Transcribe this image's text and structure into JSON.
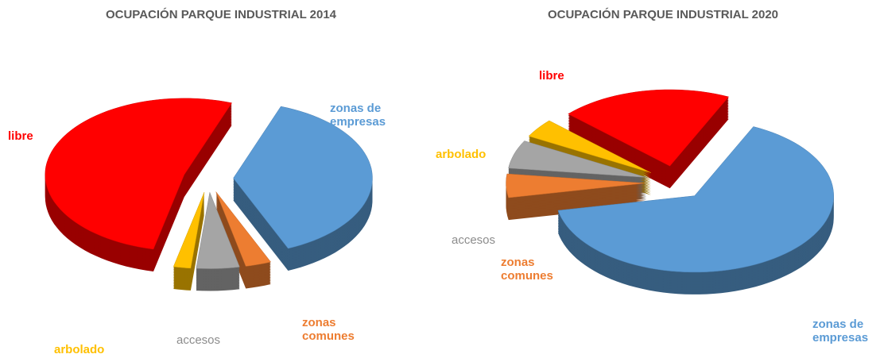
{
  "chart_data": [
    {
      "type": "pie3d",
      "title": "OCUPACIÓN PARQUE INDUSTRIAL 2014",
      "categories": [
        "zonas de empresas",
        "zonas comunes",
        "accesos",
        "arbolado",
        "libre"
      ],
      "values": [
        38,
        3,
        5,
        2,
        52
      ],
      "colors": [
        "#5b9bd5",
        "#ed7d31",
        "#a5a5a5",
        "#ffc000",
        "#ff0000"
      ]
    },
    {
      "type": "pie3d",
      "title": "OCUPACIÓN PARQUE INDUSTRIAL 2020",
      "categories": [
        "zonas de empresas",
        "zonas comunes",
        "accesos",
        "arbolado",
        "libre"
      ],
      "values": [
        65,
        5,
        6,
        4,
        20
      ],
      "colors": [
        "#5b9bd5",
        "#ed7d31",
        "#a5a5a5",
        "#ffc000",
        "#ff0000"
      ]
    }
  ]
}
